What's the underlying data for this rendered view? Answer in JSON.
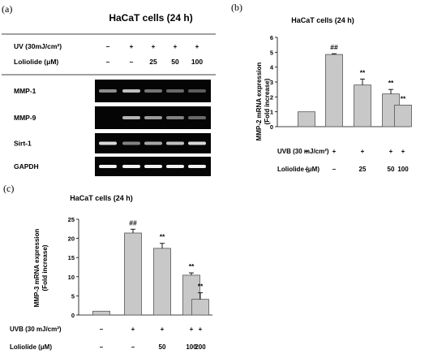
{
  "panel_a": {
    "letter": "(a)",
    "title": "HaCaT cells (24 h)",
    "treatment_rows": [
      {
        "label": "UV (30mJ/cm²)",
        "values": [
          "–",
          "+",
          "+",
          "+",
          "+"
        ]
      },
      {
        "label": "Loliolide (μM)",
        "values": [
          "–",
          "–",
          "25",
          "50",
          "100"
        ]
      }
    ],
    "gels": [
      {
        "label": "MMP-1",
        "intensity": [
          0.55,
          0.75,
          0.45,
          0.4,
          0.35
        ]
      },
      {
        "label": "MMP-9",
        "intensity": [
          0.0,
          0.7,
          0.6,
          0.5,
          0.4
        ]
      },
      {
        "label": "Sirt-1",
        "intensity": [
          0.85,
          0.5,
          0.65,
          0.75,
          0.85
        ]
      },
      {
        "label": "GAPDH",
        "intensity": [
          0.95,
          0.95,
          0.95,
          0.95,
          0.95
        ]
      }
    ]
  },
  "chart_data": [
    {
      "panel": "(b)",
      "type": "bar",
      "title": "HaCaT cells (24 h)",
      "ylabel_line1": "MMP-2 mRNA expression",
      "ylabel_line2": "(Fold increase)",
      "ylim": [
        0,
        6
      ],
      "yticks": [
        "0",
        "1",
        "2",
        "3",
        "4",
        "5",
        "6"
      ],
      "values": [
        1.0,
        4.85,
        2.8,
        2.2,
        1.45
      ],
      "errors": [
        0.0,
        0.05,
        0.4,
        0.3,
        0.0
      ],
      "annotations": [
        "",
        "##",
        "**",
        "**",
        "**"
      ],
      "rows": [
        {
          "label": "UVB (30 mJ/cm²)",
          "values": [
            "–",
            "+",
            "+",
            "+",
            "+"
          ]
        },
        {
          "label": "Loliolide (μM)",
          "values": [
            "–",
            "–",
            "25",
            "50",
            "100"
          ]
        }
      ]
    },
    {
      "panel": "(c)",
      "type": "bar",
      "title": "HaCaT cells (24 h)",
      "ylabel_line1": "MMP-3 mRNA expression",
      "ylabel_line2": "(Fold increase)",
      "ylim": [
        0,
        25
      ],
      "yticks": [
        "0",
        "5",
        "10",
        "15",
        "20",
        "25"
      ],
      "values": [
        1.0,
        21.4,
        17.4,
        10.4,
        4.1
      ],
      "errors": [
        0.0,
        1.0,
        1.3,
        0.6,
        1.7
      ],
      "annotations": [
        "",
        "##",
        "**",
        "**",
        "**"
      ],
      "rows": [
        {
          "label": "UVB (30 mJ/cm²)",
          "values": [
            "–",
            "+",
            "+",
            "+",
            "+"
          ]
        },
        {
          "label": "Loliolide (μM)",
          "values": [
            "–",
            "–",
            "50",
            "100",
            "200"
          ]
        }
      ]
    }
  ],
  "colors": {
    "bar_fill": "#c8c8c8",
    "bar_stroke": "#555555",
    "gel_bg": "#050505",
    "band": "#ffffff"
  }
}
